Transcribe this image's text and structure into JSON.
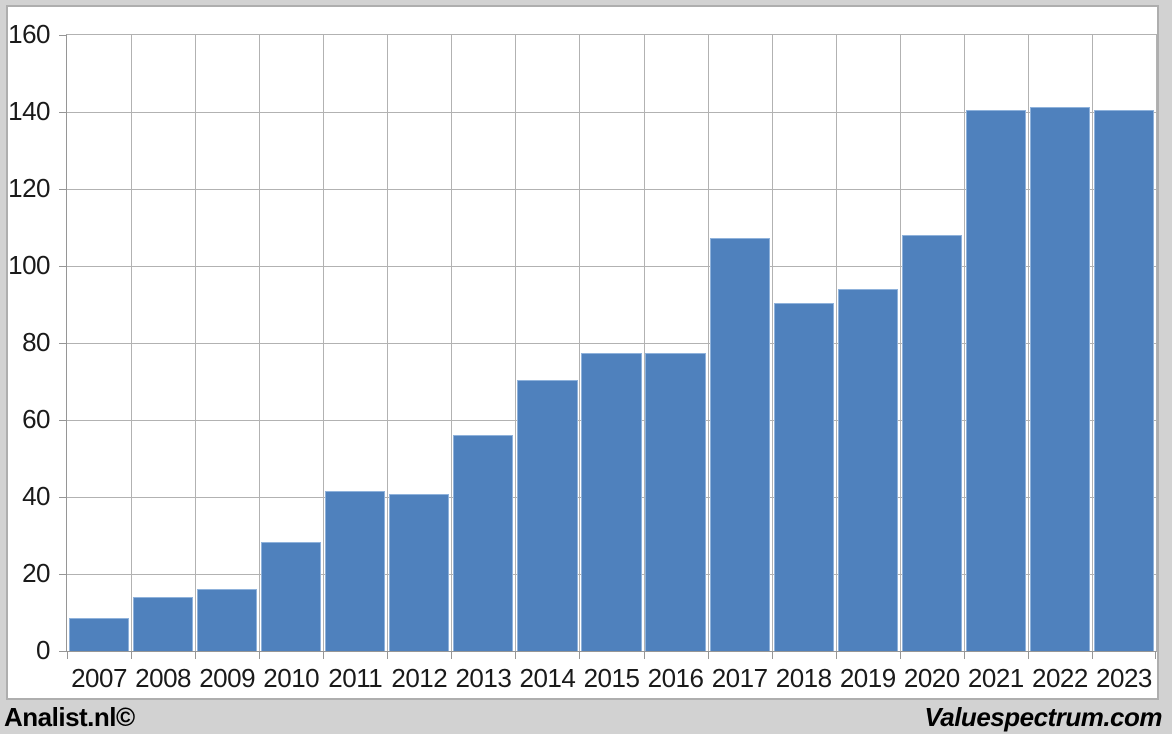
{
  "chart_data": {
    "type": "bar",
    "title": "",
    "xlabel": "",
    "ylabel": "",
    "categories": [
      "2007",
      "2008",
      "2009",
      "2010",
      "2011",
      "2012",
      "2013",
      "2014",
      "2015",
      "2016",
      "2017",
      "2018",
      "2019",
      "2020",
      "2021",
      "2022",
      "2023"
    ],
    "values": [
      8.5,
      14.1,
      16.2,
      28.4,
      41.6,
      40.7,
      56.2,
      70.4,
      77.3,
      77.3,
      107.2,
      90.3,
      94.0,
      108.1,
      140.4,
      141.4,
      140.6
    ],
    "ylim": [
      0,
      160
    ],
    "y_ticks": [
      0,
      20,
      40,
      60,
      80,
      100,
      120,
      140,
      160
    ],
    "grid": true,
    "legend": "none",
    "colors": {
      "bar_fill": "#4f81bd",
      "bar_edge": "#8fb2db",
      "gridline": "#b2b2b2",
      "axis": "#969696",
      "label_text": "#1a1a1a"
    }
  },
  "footer": {
    "left_brand": "Analist.nl©",
    "right_brand": "Valuespectrum.com"
  }
}
